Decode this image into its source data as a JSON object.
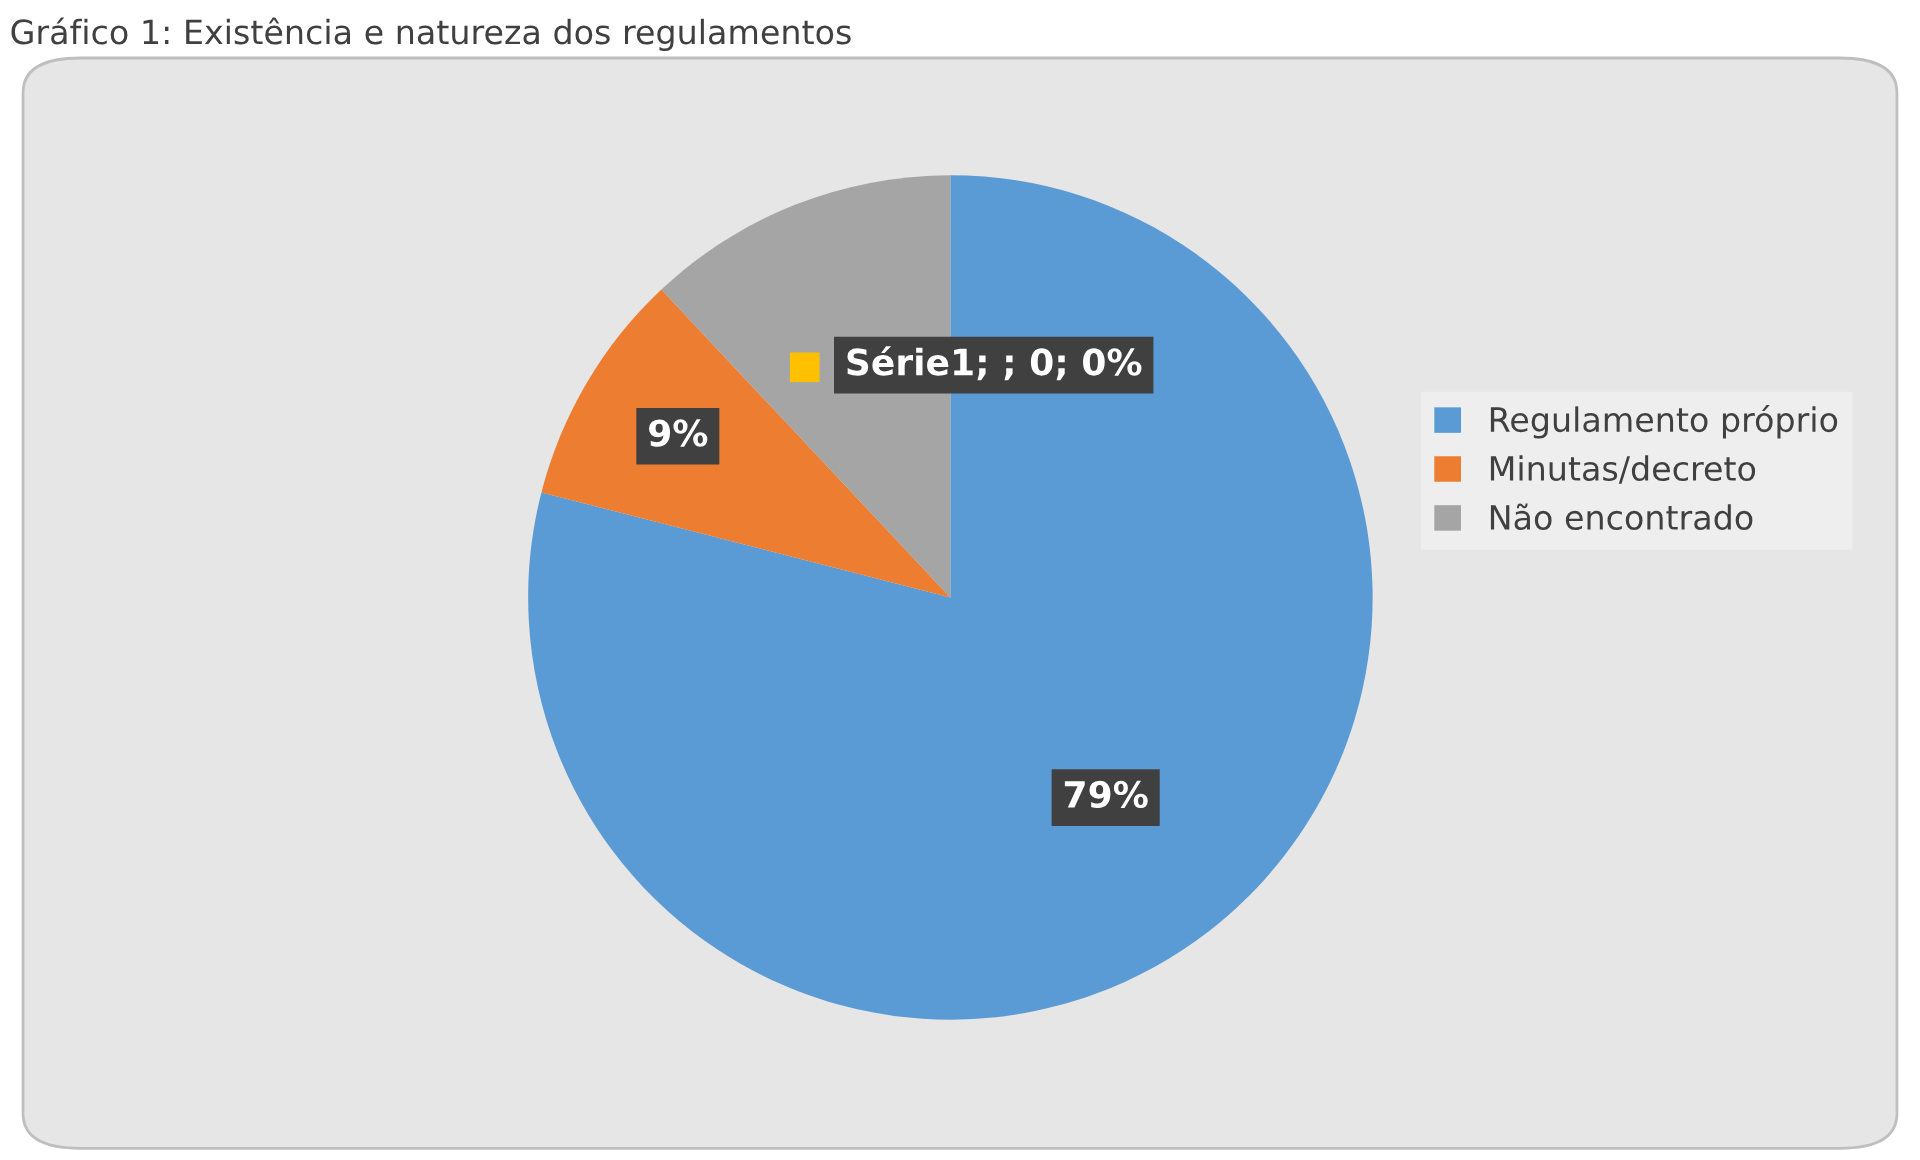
{
  "chart_data": {
    "type": "pie",
    "title": "Gráfico 1: Existência e natureza dos regulamentos",
    "categories": [
      "Regulamento próprio",
      "Minutas/decreto",
      "Não encontrado"
    ],
    "values": [
      79,
      9,
      12
    ],
    "colors": [
      "#5b9bd5",
      "#ed7d31",
      "#a5a5a5"
    ],
    "value_labels": [
      "79%",
      "9%",
      null
    ],
    "annotations": [
      "Série1; ; 0; 0%"
    ],
    "legend": "right"
  }
}
